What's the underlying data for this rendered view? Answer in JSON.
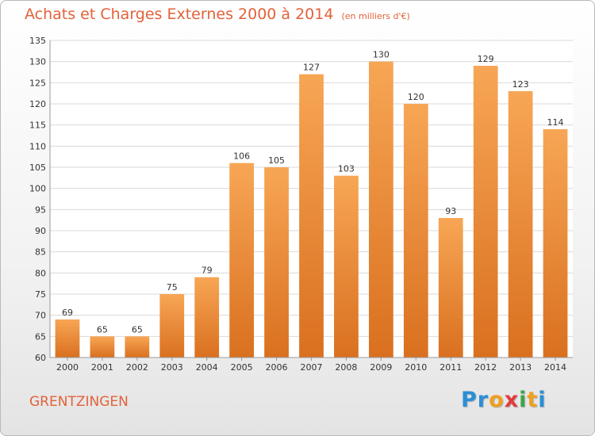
{
  "title": "Achats et Charges Externes 2000 à 2014",
  "subtitle": "(en milliers d'€)",
  "location": "GRENTZINGEN",
  "logo": {
    "letters": [
      "P",
      "r",
      "o",
      "x",
      "i",
      "t",
      "i"
    ],
    "colors": [
      "#2a8fd6",
      "#2a8fd6",
      "#f0a020",
      "#e33b3b",
      "#3aa64a",
      "#f0a020",
      "#2a8fd6"
    ]
  },
  "colors": {
    "bar_light": "#f7a655",
    "bar_dark": "#d9701f",
    "grid": "#d9d9d9",
    "title": "#e2623a"
  },
  "chart_data": {
    "type": "bar",
    "categories": [
      "2000",
      "2001",
      "2002",
      "2003",
      "2004",
      "2005",
      "2006",
      "2007",
      "2008",
      "2009",
      "2010",
      "2011",
      "2012",
      "2013",
      "2014"
    ],
    "values": [
      69,
      65,
      65,
      75,
      79,
      106,
      105,
      127,
      103,
      130,
      120,
      93,
      129,
      123,
      114
    ],
    "yticks": [
      60,
      65,
      70,
      75,
      80,
      85,
      90,
      95,
      100,
      105,
      110,
      115,
      120,
      125,
      130,
      135
    ],
    "ylim": [
      60,
      135
    ],
    "grid": true,
    "legend": "none"
  }
}
